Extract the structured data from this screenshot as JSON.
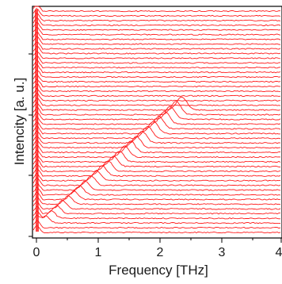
{
  "chart_data": {
    "type": "line",
    "xlabel": "Frequency [THz]",
    "ylabel": "Intencity [a. u.]",
    "xlim": [
      0,
      4
    ],
    "x_ticks": [
      "0",
      "1",
      "2",
      "3",
      "4"
    ],
    "y_ticks_labeled": false,
    "grid": false,
    "legend": "none",
    "series_color": "#ff1a1a",
    "series_count": 48,
    "description_of_values": [],
    "peak": {
      "start_frequency_thz": 0.15,
      "end_frequency_thz": 2.35,
      "first_trace_with_peak": 2,
      "last_trace_with_peak": 26
    },
    "low_frequency_edge_thz": 0.05
  }
}
